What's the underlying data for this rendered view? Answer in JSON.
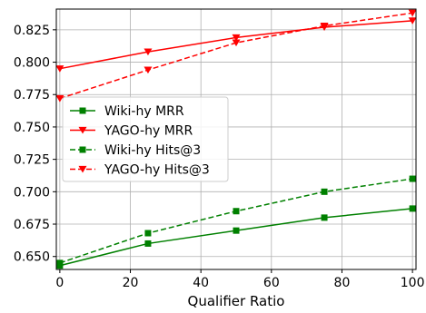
{
  "chart_data": {
    "type": "line",
    "xlabel": "Qualifier Ratio",
    "ylabel": "",
    "x": [
      0,
      25,
      50,
      75,
      100
    ],
    "xlim": [
      -1,
      101
    ],
    "ylim": [
      0.64,
      0.841
    ],
    "xticks": [
      0,
      20,
      40,
      60,
      80,
      100
    ],
    "yticks": [
      0.65,
      0.675,
      0.7,
      0.725,
      0.75,
      0.775,
      0.8,
      0.825
    ],
    "grid": true,
    "legend_position": "center-left",
    "series": [
      {
        "name": "Wiki-hy MRR",
        "color": "#008000",
        "dash": "solid",
        "marker": "square",
        "values": [
          0.643,
          0.66,
          0.67,
          0.68,
          0.687
        ]
      },
      {
        "name": "YAGO-hy MRR",
        "color": "#ff0000",
        "dash": "solid",
        "marker": "triangle-down",
        "values": [
          0.795,
          0.808,
          0.819,
          0.827,
          0.832
        ]
      },
      {
        "name": "Wiki-hy Hits@3",
        "color": "#008000",
        "dash": "dashed",
        "marker": "square",
        "values": [
          0.645,
          0.668,
          0.685,
          0.7,
          0.71
        ]
      },
      {
        "name": "YAGO-hy Hits@3",
        "color": "#ff0000",
        "dash": "dashed",
        "marker": "triangle-down",
        "values": [
          0.772,
          0.794,
          0.815,
          0.828,
          0.838
        ]
      }
    ]
  }
}
